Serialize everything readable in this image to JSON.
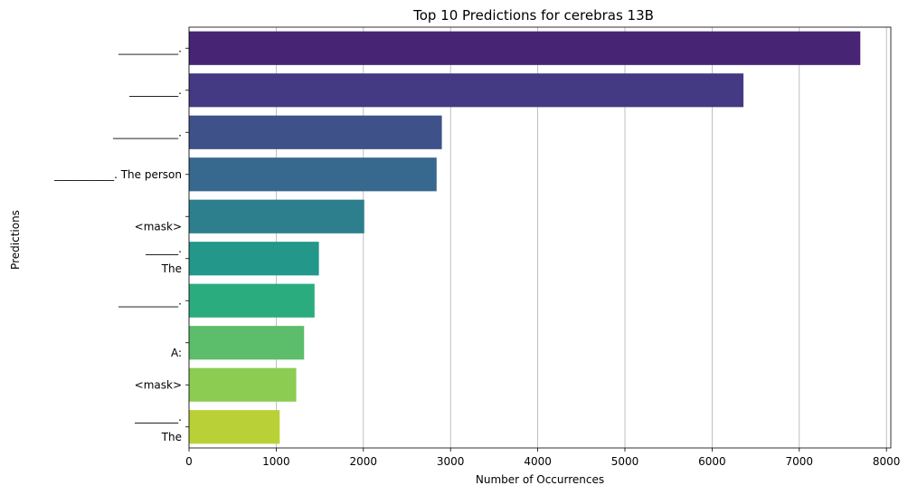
{
  "chart_data": {
    "type": "bar",
    "orientation": "horizontal",
    "title": "Top 10 Predictions for cerebras 13B",
    "xlabel": "Number of Occurrences",
    "ylabel": "Predictions",
    "xlim": [
      0,
      8050
    ],
    "xticks": [
      0,
      1000,
      2000,
      3000,
      4000,
      5000,
      6000,
      7000,
      8000
    ],
    "grid": "vertical",
    "categories": [
      "___________.",
      "_________.",
      "____________.",
      "___________. The person",
      "\n<mask>",
      "______.\nThe",
      "___________.",
      "\nA:",
      "<mask>",
      "________.\nThe"
    ],
    "values": [
      7700,
      6360,
      2900,
      2840,
      2010,
      1490,
      1440,
      1320,
      1230,
      1040
    ],
    "colors": [
      "#482475",
      "#443a83",
      "#3e5189",
      "#37688d",
      "#2d7f8d",
      "#22978a",
      "#2aac7e",
      "#5cbd6a",
      "#8ccc52",
      "#b9d136"
    ]
  }
}
